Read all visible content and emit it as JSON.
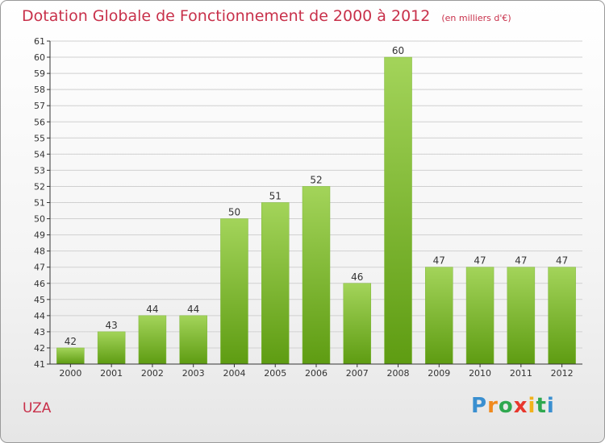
{
  "title": "Dotation Globale de Fonctionnement de 2000 à 2012",
  "subtitle": "(en milliers d'€)",
  "commune": "UZA",
  "logo": {
    "letters": [
      "P",
      "r",
      "o",
      "x",
      "i",
      "t",
      "i"
    ],
    "colors": [
      "#3a8fd0",
      "#f08a1e",
      "#2fa84f",
      "#e8372d",
      "#f2b21b",
      "#2fa84f",
      "#3a8fd0"
    ]
  },
  "colors": {
    "bar_top": "#a3d45a",
    "bar_bottom": "#5e9c12",
    "grid": "#d0d0d0",
    "axis": "#333333"
  },
  "chart_data": {
    "type": "bar",
    "title": "Dotation Globale de Fonctionnement de 2000 à 2012",
    "subtitle": "(en milliers d'€)",
    "categories": [
      "2000",
      "2001",
      "2002",
      "2003",
      "2004",
      "2005",
      "2006",
      "2007",
      "2008",
      "2009",
      "2010",
      "2011",
      "2012"
    ],
    "values": [
      42,
      43,
      44,
      44,
      50,
      51,
      52,
      46,
      60,
      47,
      47,
      47,
      47
    ],
    "data_labels": [
      "42",
      "43",
      "44",
      "44",
      "50",
      "51",
      "52",
      "46",
      "60",
      "47",
      "47",
      "47",
      "47"
    ],
    "ylim": [
      41,
      61
    ],
    "yticks": [
      41,
      42,
      43,
      44,
      45,
      46,
      47,
      48,
      49,
      50,
      51,
      52,
      53,
      54,
      55,
      56,
      57,
      58,
      59,
      60,
      61
    ],
    "grid": true,
    "legend": "none"
  }
}
